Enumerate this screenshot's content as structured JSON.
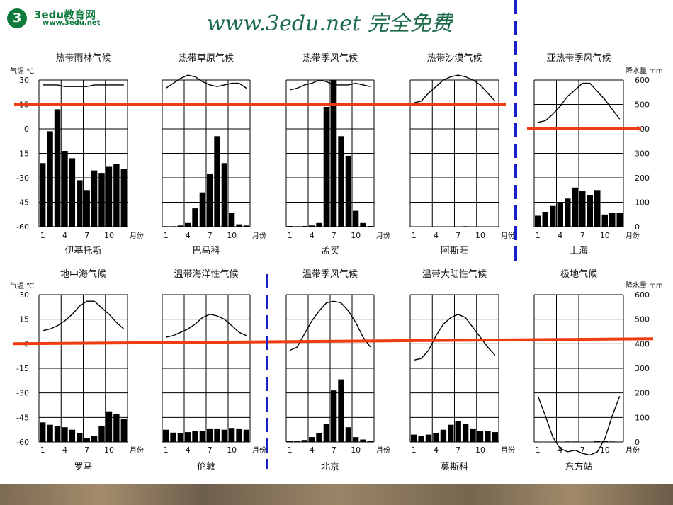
{
  "header": {
    "logo_mark": "3",
    "logo_name": "3edu教育网",
    "logo_url": "www.3edu.net",
    "banner": "www.3edu.net  完全免费"
  },
  "colors": {
    "bar": "#000000",
    "curve": "#000000",
    "grid": "#000000",
    "red_line": "#ee3b10",
    "blue_dash": "#1a20c8"
  },
  "axes": {
    "temp_label": "气温 ℃",
    "precip_label": "降水量 mm",
    "month_label": "月份",
    "temp_ticks": [
      "30",
      "15",
      "0",
      "-15",
      "-30",
      "-45",
      "-60"
    ],
    "precip_ticks": [
      "600",
      "500",
      "400",
      "300",
      "200",
      "100",
      "0"
    ],
    "month_ticks": [
      "1",
      "4",
      "7",
      "10"
    ],
    "temp_range": [
      -60,
      30
    ],
    "precip_range": [
      0,
      600
    ]
  },
  "reference_lines": {
    "red": [
      "15 ℃ (top row)",
      "400 mm (亚热带季风)",
      "0 ℃ (bottom row)"
    ]
  },
  "chart_data": [
    {
      "type": "bar+line",
      "title": "热带雨林气候",
      "city": "伊基托斯",
      "temperature": [
        27,
        27,
        27,
        26,
        26,
        26,
        26,
        27,
        27,
        27,
        27,
        27
      ],
      "precipitation": [
        260,
        390,
        480,
        310,
        280,
        190,
        150,
        230,
        220,
        245,
        255,
        235
      ]
    },
    {
      "type": "bar+line",
      "title": "热带草原气候",
      "city": "巴马科",
      "temperature": [
        25,
        28,
        31,
        33,
        32,
        29,
        27,
        26,
        27,
        28,
        28,
        25
      ],
      "precipitation": [
        2,
        2,
        5,
        15,
        75,
        140,
        215,
        370,
        260,
        55,
        10,
        5
      ]
    },
    {
      "type": "bar+line",
      "title": "热带季风气候",
      "city": "孟买",
      "temperature": [
        24,
        25,
        27,
        28,
        30,
        29,
        27,
        27,
        27,
        28,
        27,
        26
      ],
      "precipitation": [
        3,
        2,
        3,
        5,
        15,
        490,
        640,
        370,
        290,
        65,
        15,
        3
      ]
    },
    {
      "type": "bar+line",
      "title": "热带沙漠气候",
      "city": "阿斯旺",
      "temperature": [
        16,
        17,
        22,
        26,
        30,
        32,
        33,
        32,
        30,
        27,
        22,
        17
      ],
      "precipitation": [
        0,
        0,
        0,
        0,
        0,
        0,
        0,
        2,
        0,
        0,
        0,
        0
      ]
    },
    {
      "type": "bar+line",
      "title": "亚热带季风气候",
      "city": "上海",
      "temperature": [
        4,
        5,
        9,
        14,
        20,
        24,
        28,
        28,
        23,
        18,
        12,
        6
      ],
      "precipitation": [
        45,
        60,
        85,
        100,
        115,
        160,
        145,
        130,
        150,
        50,
        55,
        55
      ]
    },
    {
      "type": "bar+line",
      "title": "地中海气候",
      "city": "罗马",
      "temperature": [
        8,
        9,
        11,
        14,
        18,
        23,
        26,
        26,
        22,
        18,
        13,
        9
      ],
      "precipitation": [
        80,
        70,
        65,
        60,
        50,
        35,
        15,
        25,
        65,
        125,
        115,
        95
      ]
    },
    {
      "type": "bar+line",
      "title": "温带海洋性气候",
      "city": "伦敦",
      "temperature": [
        4,
        5,
        7,
        9,
        12,
        16,
        18,
        17,
        15,
        11,
        7,
        5
      ],
      "precipitation": [
        50,
        38,
        35,
        40,
        45,
        45,
        55,
        55,
        50,
        57,
        55,
        50
      ]
    },
    {
      "type": "bar+line",
      "title": "温带季风气候",
      "city": "北京",
      "temperature": [
        -4,
        -2,
        6,
        14,
        20,
        25,
        26,
        25,
        20,
        13,
        4,
        -2
      ],
      "precipitation": [
        3,
        5,
        8,
        20,
        35,
        75,
        210,
        255,
        60,
        20,
        10,
        3
      ]
    },
    {
      "type": "bar+line",
      "title": "温带大陆性气候",
      "city": "莫斯科",
      "temperature": [
        -10,
        -9,
        -4,
        5,
        12,
        16,
        18,
        16,
        10,
        4,
        -2,
        -7
      ],
      "precipitation": [
        30,
        25,
        30,
        35,
        50,
        70,
        85,
        75,
        55,
        45,
        45,
        40
      ]
    },
    {
      "type": "bar+line",
      "title": "极地气候",
      "city": "东方站",
      "temperature": [
        -32,
        -44,
        -57,
        -64,
        -66,
        -65,
        -67,
        -68,
        -66,
        -58,
        -44,
        -32
      ],
      "precipitation": [
        0,
        0,
        0,
        0,
        2,
        2,
        0,
        0,
        3,
        3,
        2,
        0
      ]
    }
  ]
}
